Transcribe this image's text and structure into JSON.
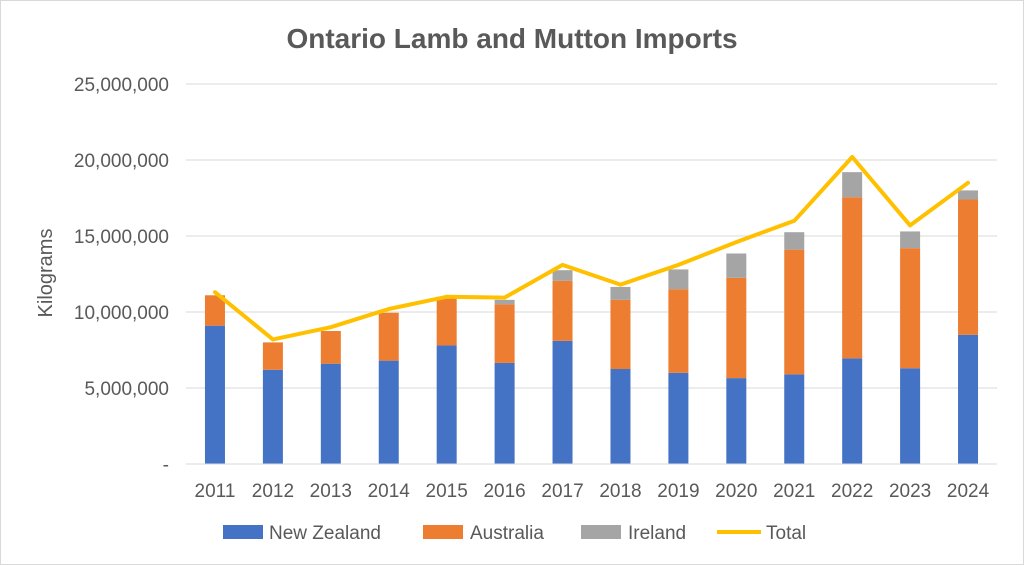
{
  "chart_data": {
    "type": "bar",
    "stacked": true,
    "title": "Ontario Lamb and Mutton Imports",
    "xlabel": "",
    "ylabel": "Kilograms",
    "ylim": [
      0,
      25000000
    ],
    "yticks": [
      0,
      5000000,
      10000000,
      15000000,
      20000000,
      25000000
    ],
    "ytick_labels": [
      "-",
      "5,000,000",
      "10,000,000",
      "15,000,000",
      "20,000,000",
      "25,000,000"
    ],
    "grid": true,
    "legend": "bottom",
    "categories": [
      "2011",
      "2012",
      "2013",
      "2014",
      "2015",
      "2016",
      "2017",
      "2018",
      "2019",
      "2020",
      "2021",
      "2022",
      "2023",
      "2024"
    ],
    "series": [
      {
        "name": "New Zealand",
        "type": "bar",
        "color": "#4472c4",
        "values": [
          9100000,
          6200000,
          6600000,
          6800000,
          7800000,
          6650000,
          8100000,
          6250000,
          6000000,
          5650000,
          5900000,
          6950000,
          6300000,
          8500000
        ]
      },
      {
        "name": "Australia",
        "type": "bar",
        "color": "#ed7d31",
        "values": [
          2000000,
          1800000,
          2150000,
          3150000,
          3200000,
          3850000,
          3950000,
          4550000,
          5500000,
          6600000,
          8200000,
          10600000,
          7900000,
          8900000
        ]
      },
      {
        "name": "Ireland",
        "type": "bar",
        "color": "#a5a5a5",
        "values": [
          0,
          0,
          0,
          0,
          0,
          300000,
          700000,
          850000,
          1300000,
          1600000,
          1150000,
          1650000,
          1100000,
          600000
        ]
      },
      {
        "name": "Total",
        "type": "line",
        "color": "#ffc000",
        "values": [
          11300000,
          8200000,
          9000000,
          10200000,
          11000000,
          10950000,
          13100000,
          11800000,
          13100000,
          14600000,
          16000000,
          20200000,
          15700000,
          18500000
        ]
      }
    ]
  }
}
